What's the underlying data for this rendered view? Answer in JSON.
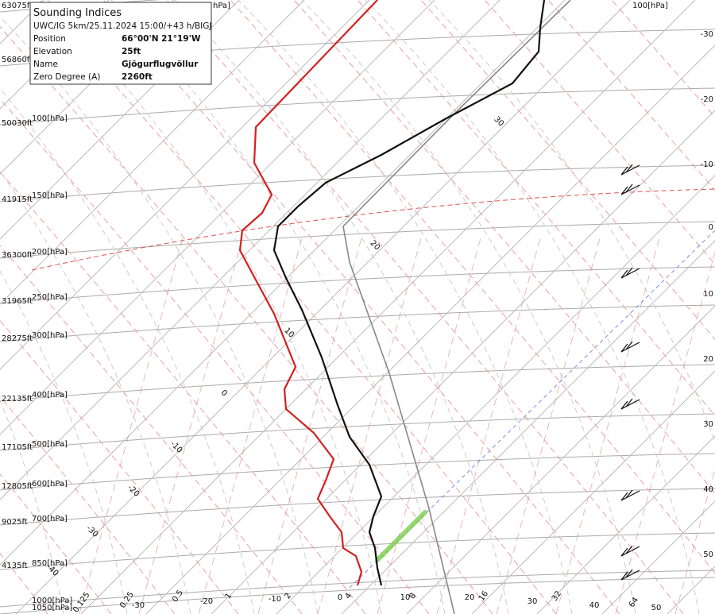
{
  "info_box": {
    "title": "Sounding Indices",
    "subtitle": "UWC/IG 5km/25.11.2024 15:00/+43 h/BIGJ",
    "rows": [
      [
        "Position",
        "66°00'N 21°19'W"
      ],
      [
        "Elevation",
        "25ft"
      ],
      [
        "Name",
        "Gjögurflugvöllur"
      ],
      [
        "Zero Degree (A)",
        "2260ft"
      ]
    ]
  },
  "altitude_labels": [
    "63075ft",
    "56860ft",
    "50030ft",
    "41915ft",
    "36300ft",
    "31965ft",
    "28275ft",
    "22135ft",
    "17105ft",
    "12805ft",
    "9025ft",
    "4135ft"
  ],
  "pressure_labels": [
    "100[hPa]",
    "150[hPa]",
    "200[hPa]",
    "250[hPa]",
    "300[hPa]",
    "400[hPa]",
    "500[hPa]",
    "600[hPa]",
    "700[hPa]",
    "850[hPa]",
    "1000[hPa]",
    "1050[hPa]"
  ],
  "top_pressure_labels": [
    "hPa]",
    "100[hPa]"
  ],
  "right_axis_labels": [
    "-30",
    "-20",
    "-10",
    "0",
    "10",
    "20",
    "30",
    "40",
    "50"
  ],
  "bottom_temperature_labels": [
    "-30",
    "-20",
    "-10",
    "0",
    "10",
    "20",
    "30",
    "40",
    "50"
  ],
  "mixing_ratio_labels": [
    "0.125",
    "0.25",
    "0.5",
    "1",
    "2",
    "4",
    "8",
    "16",
    "32",
    "64"
  ],
  "line_labels": [
    "30",
    "20",
    "10",
    "0",
    "-10",
    "-20",
    "-30",
    "-40"
  ]
}
